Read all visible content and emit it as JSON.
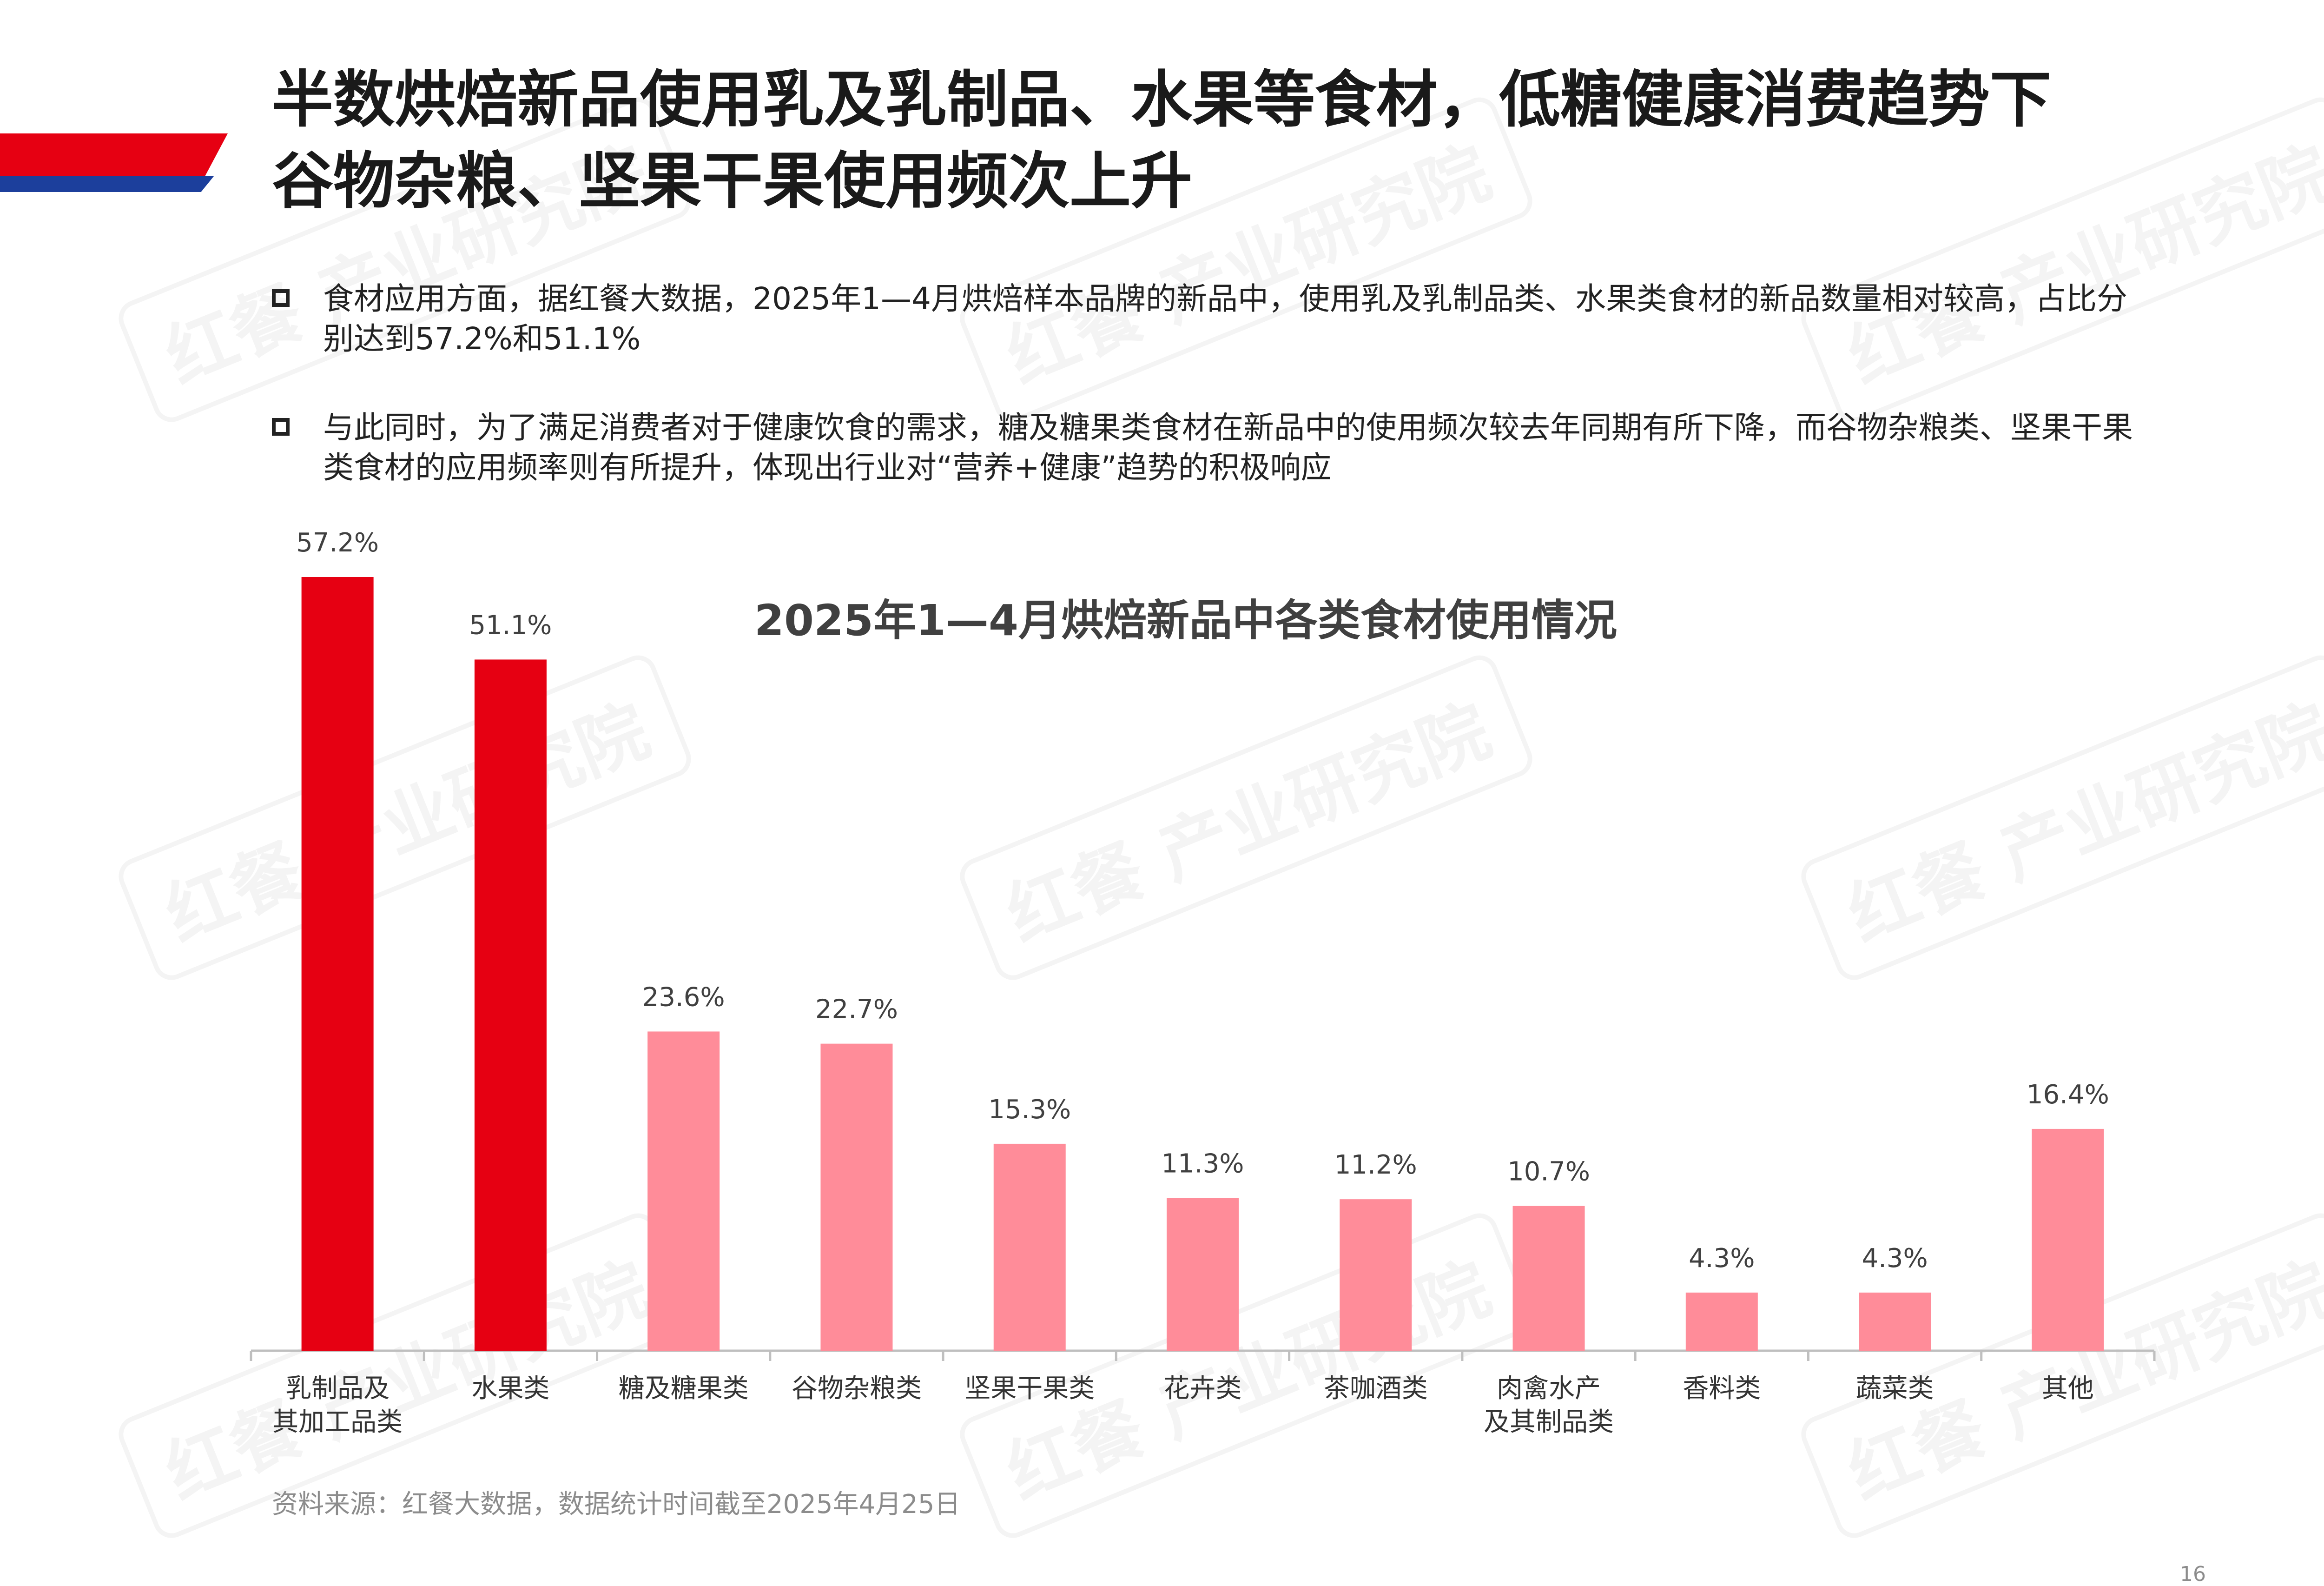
{
  "brand": {
    "red": "#e60012",
    "pink": "#ff8c99",
    "blue": "#1c3f9c"
  },
  "watermark_text": "红餐 产业研究院",
  "title": {
    "line1": "半数烘焙新品使用乳及乳制品、水果等食材，低糖健康消费趋势下",
    "line2": "谷物杂粮、坚果干果使用频次上升"
  },
  "bullets": [
    "食材应用方面，据红餐大数据，2025年1—4月烘焙样本品牌的新品中，使用乳及乳制品类、水果类食材的新品数量相对较高，占比分别达到57.2%和51.1%",
    "与此同时，为了满足消费者对于健康饮食的需求，糖及糖果类食材在新品中的使用频次较去年同期有所下降，而谷物杂粮类、坚果干果类食材的应用频率则有所提升，体现出行业对“营养+健康”趋势的积极响应"
  ],
  "chart_data": {
    "type": "bar",
    "title": "2025年1—4月烘焙新品中各类食材使用情况",
    "categories": [
      [
        "乳制品及",
        "其加工品类"
      ],
      [
        "水果类"
      ],
      [
        "糖及糖果类"
      ],
      [
        "谷物杂粮类"
      ],
      [
        "坚果干果类"
      ],
      [
        "花卉类"
      ],
      [
        "茶咖酒类"
      ],
      [
        "肉禽水产",
        "及其制品类"
      ],
      [
        "香料类"
      ],
      [
        "蔬菜类"
      ],
      [
        "其他"
      ]
    ],
    "values": [
      57.2,
      51.1,
      23.6,
      22.7,
      15.3,
      11.3,
      11.2,
      10.7,
      4.3,
      4.3,
      16.4
    ],
    "value_labels": [
      "57.2%",
      "51.1%",
      "23.6%",
      "22.7%",
      "15.3%",
      "11.3%",
      "11.2%",
      "10.7%",
      "4.3%",
      "4.3%",
      "16.4%"
    ],
    "highlight_colors": [
      "#e60012",
      "#e60012",
      "#ff8c99",
      "#ff8c99",
      "#ff8c99",
      "#ff8c99",
      "#ff8c99",
      "#ff8c99",
      "#ff8c99",
      "#ff8c99",
      "#ff8c99"
    ],
    "ylim": [
      0,
      60
    ],
    "grid": false,
    "legend": "none"
  },
  "source": "资料来源：红餐大数据，数据统计时间截至2025年4月25日",
  "page_number": "16"
}
